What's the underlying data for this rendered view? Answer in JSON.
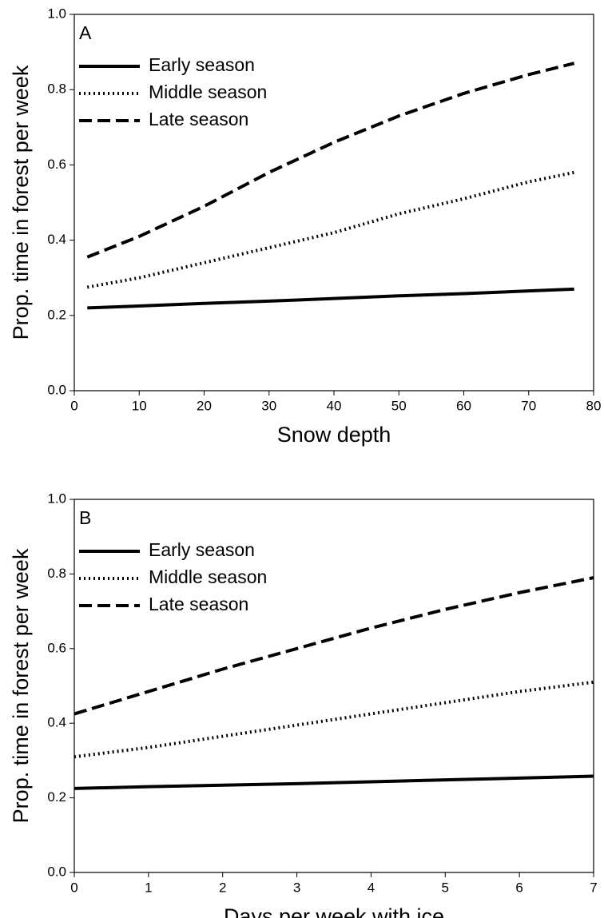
{
  "chart_data": [
    {
      "type": "line",
      "panel_label": "A",
      "x_label": "Snow depth",
      "y_label": "Prop. time in forest per week",
      "x": [
        2,
        10,
        20,
        30,
        40,
        50,
        60,
        70,
        77
      ],
      "series": [
        {
          "name": "Early season",
          "color": "#000000",
          "dash": "solid",
          "values": [
            0.22,
            0.225,
            0.232,
            0.238,
            0.245,
            0.252,
            0.258,
            0.265,
            0.27
          ]
        },
        {
          "name": "Middle season",
          "color": "#000000",
          "dash": "dotted",
          "values": [
            0.275,
            0.3,
            0.34,
            0.38,
            0.42,
            0.47,
            0.51,
            0.555,
            0.58
          ]
        },
        {
          "name": "Late season",
          "color": "#000000",
          "dash": "dashed",
          "values": [
            0.355,
            0.41,
            0.49,
            0.58,
            0.66,
            0.73,
            0.79,
            0.84,
            0.87
          ]
        }
      ],
      "xlim": [
        0,
        80
      ],
      "xticks": [
        0,
        10,
        20,
        30,
        40,
        50,
        60,
        70,
        80
      ],
      "ylim": [
        0,
        1
      ],
      "yticks": [
        {
          "value": 0,
          "label": "0.0"
        },
        0.2,
        0.4,
        0.6,
        0.8,
        {
          "value": 1,
          "label": "1.0"
        }
      ]
    },
    {
      "type": "line",
      "panel_label": "B",
      "x_label": "Days per week with ice",
      "y_label": "Prop. time in forest per week",
      "x": [
        0,
        1,
        2,
        3,
        4,
        5,
        6,
        7
      ],
      "series": [
        {
          "name": "Early season",
          "color": "#000000",
          "dash": "solid",
          "values": [
            0.225,
            0.23,
            0.234,
            0.238,
            0.243,
            0.248,
            0.253,
            0.258
          ]
        },
        {
          "name": "Middle season",
          "color": "#000000",
          "dash": "dotted",
          "values": [
            0.31,
            0.335,
            0.365,
            0.395,
            0.425,
            0.455,
            0.485,
            0.51
          ]
        },
        {
          "name": "Late season",
          "color": "#000000",
          "dash": "dashed",
          "values": [
            0.425,
            0.485,
            0.545,
            0.6,
            0.655,
            0.705,
            0.75,
            0.79
          ]
        }
      ],
      "xlim": [
        0,
        7
      ],
      "xticks": [
        0,
        1,
        2,
        3,
        4,
        5,
        6,
        7
      ],
      "ylim": [
        0,
        1
      ],
      "yticks": [
        {
          "value": 0,
          "label": "0.0"
        },
        0.2,
        0.4,
        0.6,
        0.8,
        {
          "value": 1,
          "label": "1.0"
        }
      ]
    }
  ]
}
